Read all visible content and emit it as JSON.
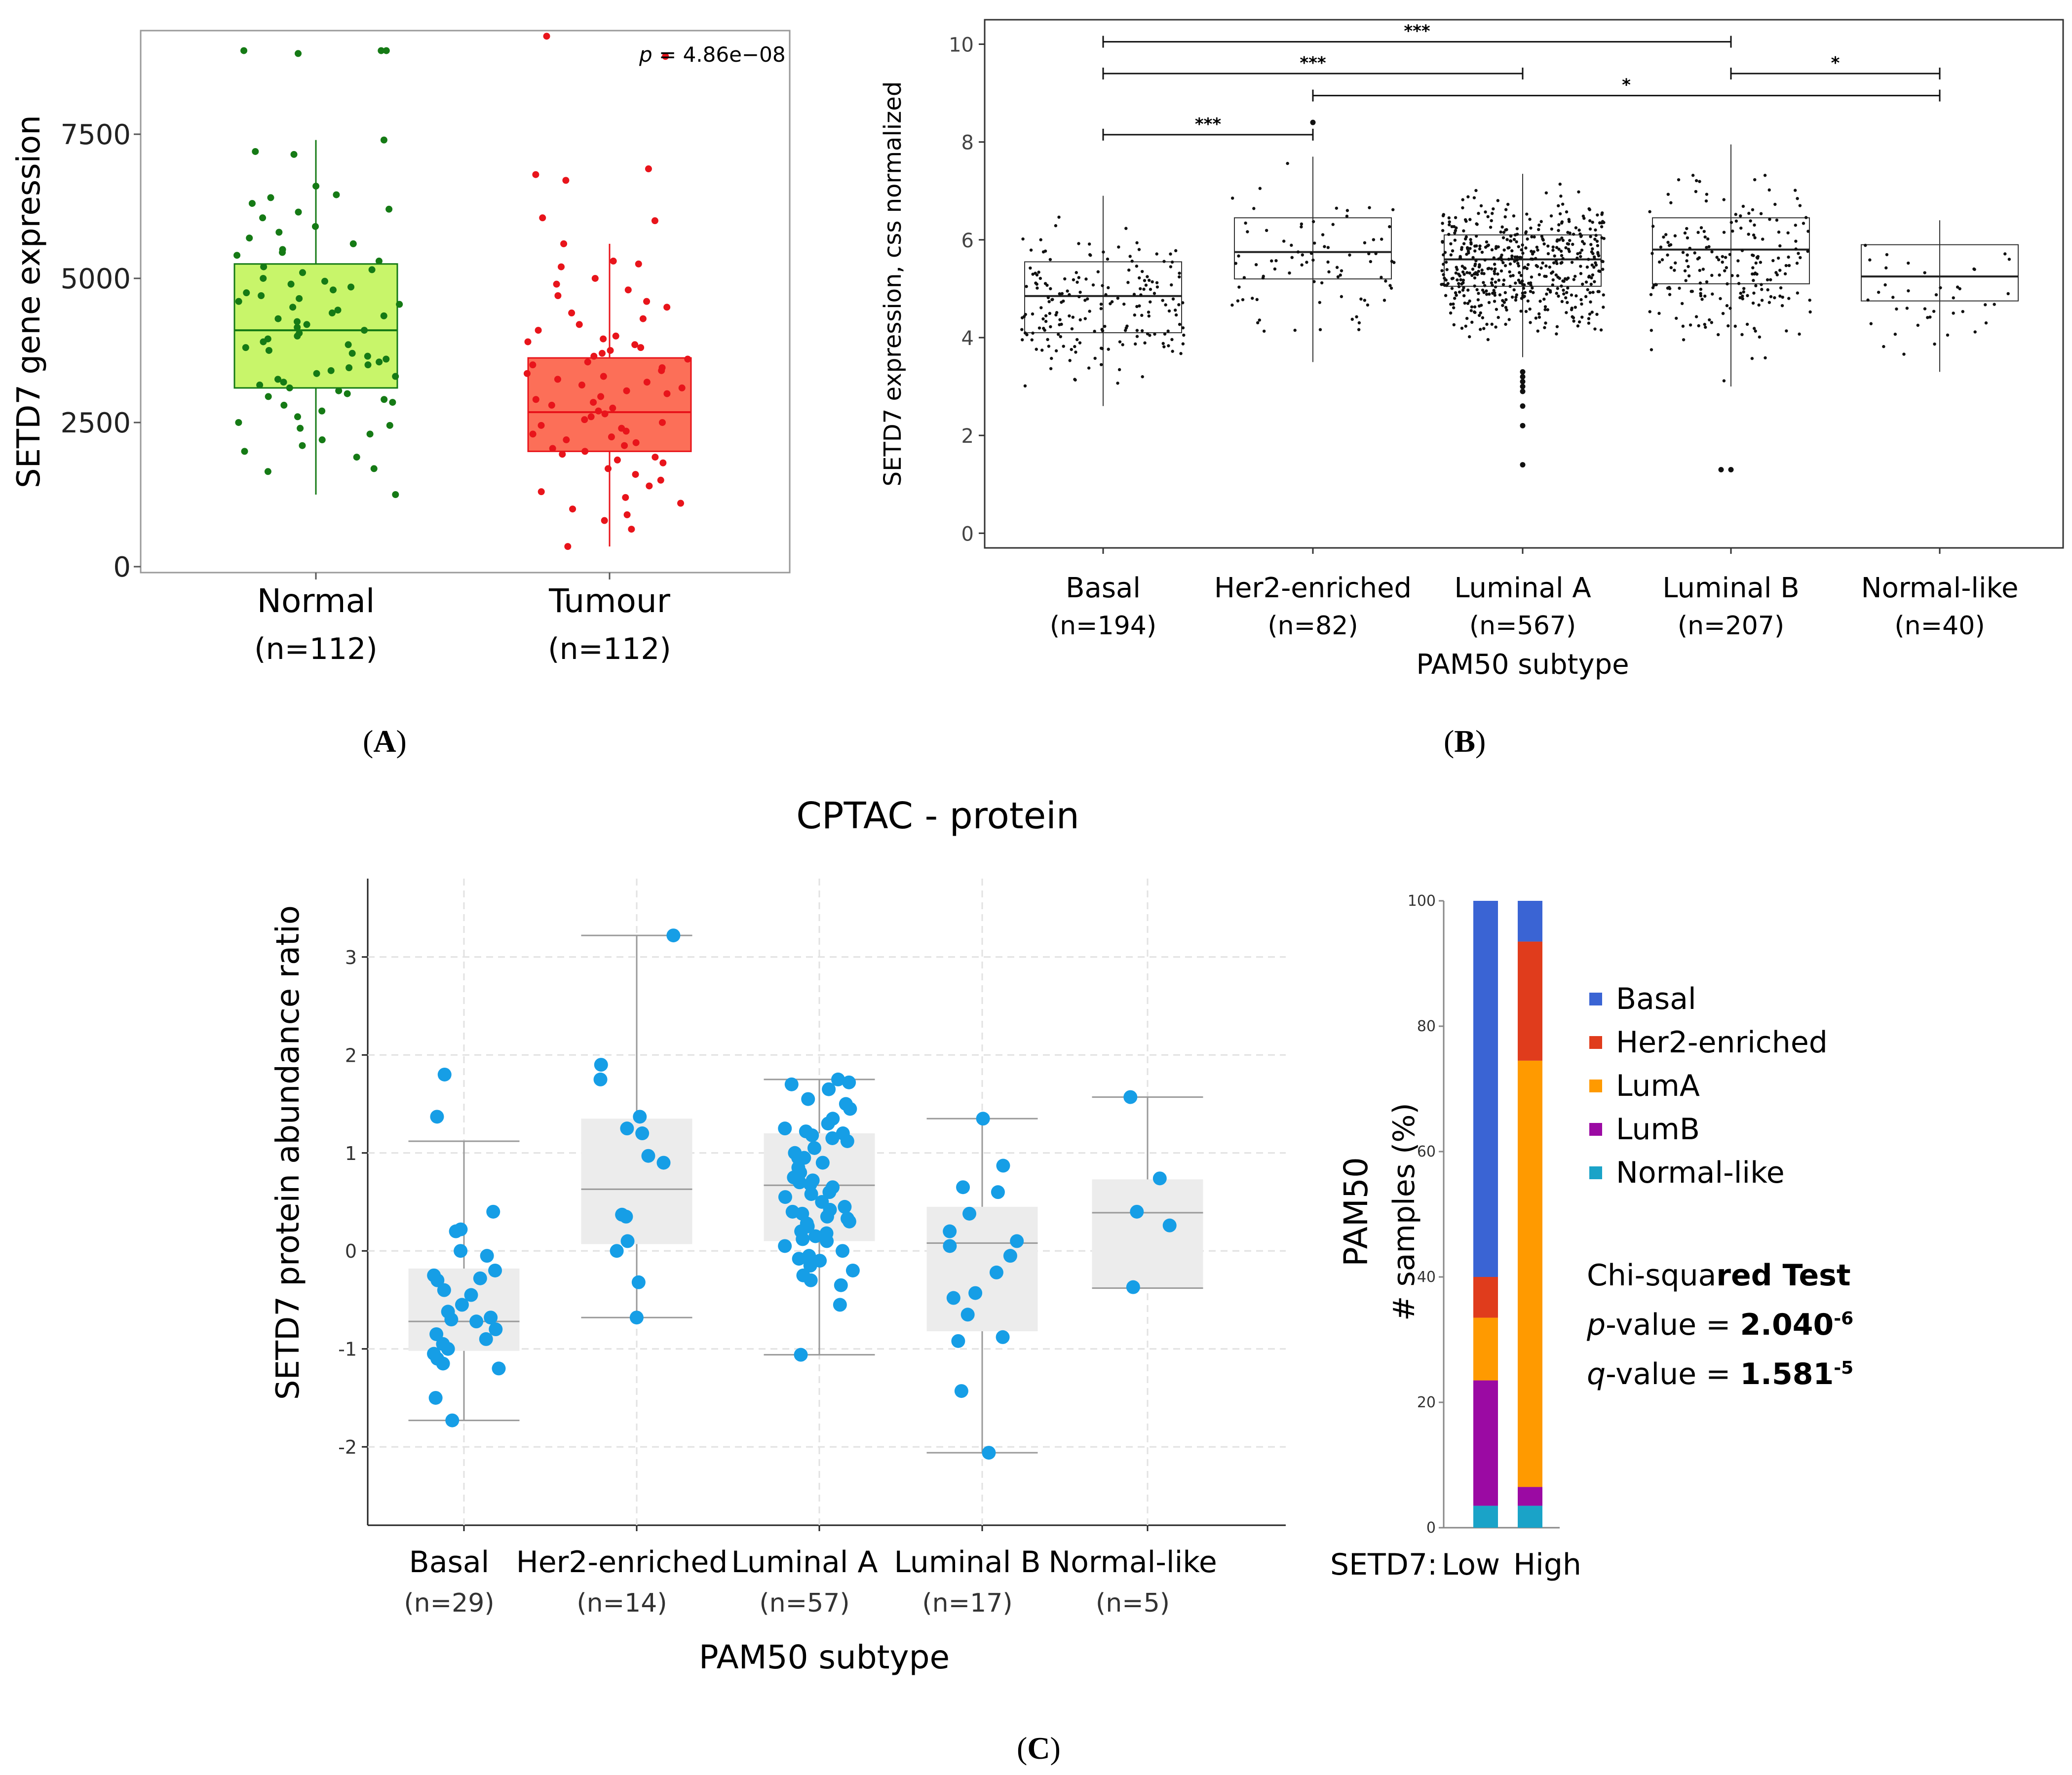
{
  "panel_labels": {
    "a": "A",
    "b": "B",
    "c": "C"
  },
  "cptac_title": "CPTAC - protein",
  "panel_c2": {
    "legend": [
      {
        "name": "Basal",
        "color": "#3a64d4"
      },
      {
        "name": "Her2-enriched",
        "color": "#e03c1c"
      },
      {
        "name": "LumA",
        "color": "#ff9a00"
      },
      {
        "name": "LumB",
        "color": "#9b0aa3"
      },
      {
        "name": "Normal-like",
        "color": "#1aa3c8"
      }
    ],
    "test_name_prefix": "Chi-squa",
    "test_name_suffix": "red Test",
    "p_label": "p",
    "p_text": "-value = ",
    "p_mantissa": "2.040",
    "p_exp": "-6",
    "q_label": "q",
    "q_text": "-value = ",
    "q_mantissa": "1.581",
    "q_exp": "-5"
  },
  "chart_data": [
    {
      "id": "A",
      "type": "box",
      "title": "",
      "ylabel": "SETD7 gene expression",
      "xlabel": "",
      "ylim": [
        0,
        9400
      ],
      "yticks": [
        0,
        2500,
        5000,
        7500
      ],
      "categories": [
        "Normal",
        "Tumour"
      ],
      "n_labels": [
        "(n=112)",
        "(n=112)"
      ],
      "annotation_p_label": "p",
      "annotation_text": " = 4.86e−08",
      "series": [
        {
          "name": "Normal",
          "color": "#c8f56a",
          "point_color": "#157a15",
          "q1": 3100,
          "median": 4100,
          "q3": 5250,
          "whisker_low": 1250,
          "whisker_high": 7400,
          "points": [
            8950,
            8950,
            8950,
            8900,
            7400,
            7200,
            7150,
            6600,
            6450,
            6400,
            6300,
            6200,
            6150,
            6050,
            5900,
            5800,
            5700,
            5600,
            5500,
            5450,
            5400,
            5300,
            5200,
            5150,
            5100,
            5000,
            4950,
            4900,
            4850,
            4800,
            4750,
            4700,
            4650,
            4600,
            4550,
            4500,
            4450,
            4400,
            4350,
            4300,
            4250,
            4200,
            4150,
            4100,
            4050,
            4000,
            3950,
            3900,
            3850,
            3800,
            3750,
            3700,
            3650,
            3600,
            3550,
            3500,
            3450,
            3400,
            3350,
            3300,
            3250,
            3200,
            3150,
            3100,
            3050,
            3000,
            2950,
            2900,
            2850,
            2800,
            2700,
            2600,
            2500,
            2450,
            2400,
            2300,
            2200,
            2100,
            2000,
            1900,
            1700,
            1650,
            1250
          ]
        },
        {
          "name": "Tumour",
          "color": "#fc6f58",
          "point_color": "#e8141b",
          "q1": 2000,
          "median": 2680,
          "q3": 3620,
          "whisker_low": 350,
          "whisker_high": 5600,
          "points": [
            9200,
            8850,
            6900,
            6800,
            6700,
            6050,
            6000,
            5600,
            5300,
            5250,
            5200,
            5000,
            4900,
            4800,
            4700,
            4600,
            4500,
            4400,
            4300,
            4200,
            4100,
            4000,
            3950,
            3900,
            3850,
            3800,
            3750,
            3700,
            3650,
            3600,
            3550,
            3500,
            3450,
            3400,
            3350,
            3300,
            3250,
            3200,
            3150,
            3100,
            3050,
            3000,
            2950,
            2900,
            2850,
            2800,
            2750,
            2700,
            2650,
            2600,
            2550,
            2500,
            2450,
            2400,
            2350,
            2300,
            2250,
            2200,
            2150,
            2100,
            2050,
            2000,
            1950,
            1900,
            1850,
            1800,
            1700,
            1600,
            1500,
            1400,
            1300,
            1200,
            1100,
            1000,
            900,
            800,
            650,
            350
          ]
        }
      ]
    },
    {
      "id": "B",
      "type": "box",
      "title": "",
      "ylabel": "SETD7 expression, css normalized",
      "xlabel": "PAM50 subtype",
      "ylim": [
        -0.3,
        10.5
      ],
      "yticks": [
        0,
        2,
        4,
        6,
        8,
        10
      ],
      "categories": [
        "Basal",
        "Her2-enriched",
        "Luminal A",
        "Luminal B",
        "Normal-like"
      ],
      "n_labels": [
        "(n=194)",
        "(n=82)",
        "(n=567)",
        "(n=207)",
        "(n=40)"
      ],
      "series": [
        {
          "name": "Basal",
          "q1": 4.1,
          "median": 4.85,
          "q3": 5.55,
          "whisker_low": 2.6,
          "whisker_high": 6.9,
          "n_points": 194,
          "outliers": []
        },
        {
          "name": "Her2-enriched",
          "q1": 5.2,
          "median": 5.75,
          "q3": 6.45,
          "whisker_low": 3.5,
          "whisker_high": 7.7,
          "n_points": 82,
          "outliers": [
            8.4
          ]
        },
        {
          "name": "Luminal A",
          "q1": 5.05,
          "median": 5.6,
          "q3": 6.1,
          "whisker_low": 3.6,
          "whisker_high": 7.35,
          "n_points": 567,
          "outliers": [
            3.3,
            3.2,
            3.1,
            3.0,
            2.9,
            2.6,
            2.2,
            1.4
          ]
        },
        {
          "name": "Luminal B",
          "q1": 5.1,
          "median": 5.8,
          "q3": 6.45,
          "whisker_low": 3.0,
          "whisker_high": 7.95,
          "n_points": 207,
          "outliers": [
            1.3,
            1.3
          ]
        },
        {
          "name": "Normal-like",
          "q1": 4.75,
          "median": 5.25,
          "q3": 5.9,
          "whisker_low": 3.3,
          "whisker_high": 6.4,
          "n_points": 40,
          "outliers": []
        }
      ],
      "significance": [
        {
          "from": "Basal",
          "to": "Luminal B",
          "y": 10.05,
          "label": "***"
        },
        {
          "from": "Basal",
          "to": "Luminal A",
          "y": 9.4,
          "label": "***"
        },
        {
          "from": "Luminal B",
          "to": "Normal-like",
          "y": 9.4,
          "label": "*"
        },
        {
          "from": "Her2-enriched",
          "to": "Normal-like",
          "y": 8.95,
          "label": "*"
        },
        {
          "from": "Basal",
          "to": "Her2-enriched",
          "y": 8.15,
          "label": "***"
        }
      ]
    },
    {
      "id": "C1",
      "type": "box",
      "title": "CPTAC - protein",
      "ylabel": "SETD7 protein abundance ratio",
      "xlabel": "PAM50 subtype",
      "ylim": [
        -2.8,
        3.8
      ],
      "yticks": [
        -2,
        -1,
        0,
        1,
        2,
        3
      ],
      "categories": [
        "Basal",
        "Her2-enriched",
        "Luminal A",
        "Luminal B",
        "Normal-like"
      ],
      "n_labels": [
        "(n=29)",
        "(n=14)",
        "(n=57)",
        "(n=17)",
        "(n=5)"
      ],
      "series": [
        {
          "name": "Basal",
          "q1": -1.02,
          "median": -0.72,
          "q3": -0.18,
          "whisker_low": -1.73,
          "whisker_high": 1.12,
          "points": [
            1.8,
            1.37,
            0.4,
            0.22,
            0.2,
            0.0,
            -0.05,
            -0.2,
            -0.25,
            -0.28,
            -0.3,
            -0.4,
            -0.45,
            -0.55,
            -0.62,
            -0.68,
            -0.7,
            -0.72,
            -0.8,
            -0.85,
            -0.9,
            -0.95,
            -1.0,
            -1.05,
            -1.1,
            -1.15,
            -1.2,
            -1.5,
            -1.73
          ]
        },
        {
          "name": "Her2-enriched",
          "q1": 0.07,
          "median": 0.63,
          "q3": 1.35,
          "whisker_low": -0.68,
          "whisker_high": 3.22,
          "points": [
            3.22,
            1.9,
            1.75,
            1.37,
            1.25,
            0.97,
            0.9,
            0.37,
            0.35,
            0.1,
            0.0,
            -0.32,
            -0.68,
            1.2
          ]
        },
        {
          "name": "Luminal A",
          "q1": 0.1,
          "median": 0.67,
          "q3": 1.2,
          "whisker_low": -1.06,
          "whisker_high": 1.75,
          "points": [
            1.75,
            1.72,
            1.7,
            1.65,
            1.55,
            1.5,
            1.45,
            1.35,
            1.3,
            1.25,
            1.22,
            1.2,
            1.18,
            1.15,
            1.12,
            1.05,
            1.0,
            0.95,
            0.9,
            0.85,
            0.8,
            0.75,
            0.7,
            0.68,
            0.65,
            0.6,
            0.55,
            0.5,
            0.45,
            0.42,
            0.4,
            0.38,
            0.35,
            0.3,
            0.28,
            0.25,
            0.2,
            0.15,
            0.12,
            0.1,
            0.05,
            0.0,
            -0.05,
            -0.1,
            -0.15,
            -0.2,
            -0.25,
            -0.3,
            -0.35,
            -0.55,
            -1.06,
            0.95,
            0.72,
            0.58,
            0.33,
            0.18,
            -0.08
          ]
        },
        {
          "name": "Luminal B",
          "q1": -0.82,
          "median": 0.08,
          "q3": 0.45,
          "whisker_low": -2.06,
          "whisker_high": 1.35,
          "points": [
            1.35,
            0.87,
            0.65,
            0.6,
            0.38,
            0.2,
            0.1,
            0.05,
            -0.05,
            -0.22,
            -0.43,
            -0.48,
            -0.65,
            -0.88,
            -0.92,
            -1.43,
            -2.06
          ]
        },
        {
          "name": "Normal-like",
          "q1": -0.38,
          "median": 0.39,
          "q3": 0.73,
          "whisker_low": -0.38,
          "whisker_high": 1.57,
          "points": [
            1.57,
            0.74,
            0.4,
            0.26,
            -0.37
          ]
        }
      ]
    },
    {
      "id": "C2",
      "type": "bar",
      "stacked": true,
      "title": "",
      "ylabel": "PAM50",
      "ylabel2": "# samples (%)",
      "xlabel_prefix": "SETD7:",
      "categories": [
        "Low",
        "High"
      ],
      "ylim": [
        0,
        100
      ],
      "yticks": [
        0,
        20,
        40,
        60,
        80,
        100
      ],
      "series": [
        {
          "name": "Normal-like",
          "values": [
            3.5,
            3.5
          ]
        },
        {
          "name": "LumB",
          "values": [
            20,
            3
          ]
        },
        {
          "name": "LumA",
          "values": [
            10,
            68
          ]
        },
        {
          "name": "Her2-enriched",
          "values": [
            6.5,
            19
          ]
        },
        {
          "name": "Basal",
          "values": [
            60,
            6.5
          ]
        }
      ]
    }
  ]
}
